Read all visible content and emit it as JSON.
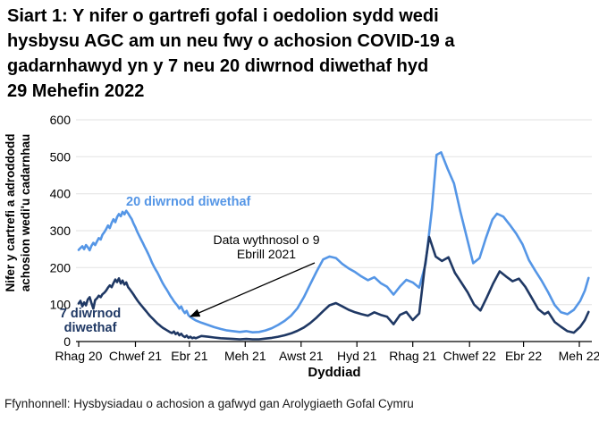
{
  "title_lines": [
    "Siart 1: Y nifer o gartrefi gofal i oedolion sydd wedi",
    "hysbysu AGC am un neu fwy o achosion COVID-19 a",
    "gadarnhawyd yn y 7 neu 20 diwrnod diwethaf hyd",
    "29 Mehefin 2022"
  ],
  "source": "Ffynhonnell: Hysbysiadau o achosion a gafwyd gan Arolygiaeth Gofal Cymru",
  "colors": {
    "blue": "#5596E6",
    "navy": "#1F3864",
    "grid": "#E2E2E2",
    "axis": "#000000",
    "text": "#000000"
  },
  "labels": {
    "series20": "20 diwrnod diwethaf",
    "series7_line1": "7 diwrnod",
    "series7_line2": "diwethaf",
    "annotation_line1": "Data wythnosol o 9",
    "annotation_line2": "Ebrill 2021",
    "xlabel": "Dyddiad",
    "ylabel_line1": "Nifer y cartrefi a adroddodd",
    "ylabel_line2": "achosion wedi'u cadarnhau"
  },
  "chart_data": {
    "type": "line",
    "title": "Siart 1: Y nifer o gartrefi gofal i oedolion sydd wedi hysbysu AGC am un neu fwy o achosion COVID-19 a gadarnhawyd yn y 7 neu 20 diwrnod diwethaf hyd 29 Mehefin 2022",
    "xlabel": "Dyddiad",
    "ylabel": "Nifer y cartrefi a adroddodd achosion wedi'u cadarnhau",
    "ylim": [
      0,
      600
    ],
    "y_ticks": [
      0,
      100,
      200,
      300,
      400,
      500,
      600
    ],
    "x_ticks": [
      {
        "label": "Rhag 20",
        "day": 0
      },
      {
        "label": "Chwef 21",
        "day": 62
      },
      {
        "label": "Ebr 21",
        "day": 121
      },
      {
        "label": "Meh 21",
        "day": 182
      },
      {
        "label": "Awst 21",
        "day": 243
      },
      {
        "label": "Hyd 21",
        "day": 304
      },
      {
        "label": "Rhag 21",
        "day": 365
      },
      {
        "label": "Chwef 22",
        "day": 427
      },
      {
        "label": "Ebr 22",
        "day": 486
      },
      {
        "label": "Meh 22",
        "day": 547
      }
    ],
    "x_unit": "days since 1 Dec 2020, daily data until 9 Ebrill 2021 then weekly",
    "annotation": {
      "text": "Data wythnosol o 9 Ebrill 2021",
      "points_to_day": 119
    },
    "grid": "horizontal only",
    "legend_position": "inline labels next to lines",
    "series": [
      {
        "id": "20-diwrnod",
        "name": "20 diwrnod diwethaf",
        "color": "#5596E6",
        "points": [
          [
            0,
            248
          ],
          [
            2,
            253
          ],
          [
            4,
            258
          ],
          [
            6,
            250
          ],
          [
            8,
            261
          ],
          [
            10,
            255
          ],
          [
            12,
            247
          ],
          [
            14,
            259
          ],
          [
            16,
            267
          ],
          [
            18,
            261
          ],
          [
            20,
            271
          ],
          [
            22,
            280
          ],
          [
            24,
            276
          ],
          [
            26,
            289
          ],
          [
            28,
            296
          ],
          [
            30,
            304
          ],
          [
            32,
            314
          ],
          [
            34,
            307
          ],
          [
            36,
            321
          ],
          [
            38,
            331
          ],
          [
            40,
            323
          ],
          [
            42,
            337
          ],
          [
            44,
            345
          ],
          [
            46,
            339
          ],
          [
            48,
            351
          ],
          [
            50,
            344
          ],
          [
            52,
            354
          ],
          [
            54,
            347
          ],
          [
            56,
            339
          ],
          [
            58,
            331
          ],
          [
            60,
            319
          ],
          [
            62,
            309
          ],
          [
            64,
            297
          ],
          [
            66,
            287
          ],
          [
            68,
            277
          ],
          [
            70,
            267
          ],
          [
            72,
            257
          ],
          [
            74,
            247
          ],
          [
            76,
            237
          ],
          [
            78,
            226
          ],
          [
            80,
            214
          ],
          [
            82,
            204
          ],
          [
            84,
            195
          ],
          [
            86,
            187
          ],
          [
            88,
            177
          ],
          [
            90,
            167
          ],
          [
            92,
            157
          ],
          [
            94,
            149
          ],
          [
            96,
            141
          ],
          [
            98,
            133
          ],
          [
            100,
            124
          ],
          [
            102,
            117
          ],
          [
            104,
            109
          ],
          [
            106,
            103
          ],
          [
            108,
            97
          ],
          [
            110,
            89
          ],
          [
            112,
            95
          ],
          [
            114,
            84
          ],
          [
            116,
            77
          ],
          [
            118,
            83
          ],
          [
            120,
            71
          ],
          [
            122,
            67
          ],
          [
            124,
            63
          ],
          [
            126,
            60
          ],
          [
            128,
            57
          ],
          [
            134,
            51
          ],
          [
            141,
            45
          ],
          [
            148,
            39
          ],
          [
            155,
            34
          ],
          [
            162,
            30
          ],
          [
            169,
            28
          ],
          [
            176,
            26
          ],
          [
            183,
            28
          ],
          [
            190,
            25
          ],
          [
            197,
            26
          ],
          [
            204,
            30
          ],
          [
            211,
            36
          ],
          [
            218,
            45
          ],
          [
            225,
            56
          ],
          [
            232,
            70
          ],
          [
            239,
            90
          ],
          [
            246,
            120
          ],
          [
            253,
            155
          ],
          [
            260,
            190
          ],
          [
            267,
            222
          ],
          [
            274,
            230
          ],
          [
            281,
            226
          ],
          [
            288,
            210
          ],
          [
            295,
            198
          ],
          [
            302,
            188
          ],
          [
            309,
            176
          ],
          [
            316,
            166
          ],
          [
            323,
            174
          ],
          [
            330,
            158
          ],
          [
            337,
            148
          ],
          [
            344,
            127
          ],
          [
            351,
            149
          ],
          [
            358,
            167
          ],
          [
            365,
            160
          ],
          [
            372,
            146
          ],
          [
            379,
            210
          ],
          [
            386,
            360
          ],
          [
            391,
            505
          ],
          [
            396,
            512
          ],
          [
            403,
            468
          ],
          [
            410,
            428
          ],
          [
            417,
            352
          ],
          [
            424,
            282
          ],
          [
            431,
            212
          ],
          [
            438,
            226
          ],
          [
            445,
            281
          ],
          [
            452,
            330
          ],
          [
            457,
            346
          ],
          [
            464,
            338
          ],
          [
            471,
            316
          ],
          [
            478,
            292
          ],
          [
            485,
            263
          ],
          [
            492,
            220
          ],
          [
            499,
            191
          ],
          [
            506,
            164
          ],
          [
            513,
            133
          ],
          [
            520,
            99
          ],
          [
            527,
            79
          ],
          [
            534,
            74
          ],
          [
            541,
            86
          ],
          [
            548,
            110
          ],
          [
            553,
            138
          ],
          [
            557,
            172
          ]
        ]
      },
      {
        "id": "7-diwrnod",
        "name": "7 diwrnod diwethaf",
        "color": "#1F3864",
        "points": [
          [
            0,
            103
          ],
          [
            2,
            110
          ],
          [
            4,
            95
          ],
          [
            6,
            106
          ],
          [
            8,
            98
          ],
          [
            10,
            114
          ],
          [
            12,
            120
          ],
          [
            14,
            104
          ],
          [
            16,
            89
          ],
          [
            18,
            112
          ],
          [
            20,
            117
          ],
          [
            22,
            124
          ],
          [
            24,
            120
          ],
          [
            26,
            128
          ],
          [
            28,
            132
          ],
          [
            30,
            138
          ],
          [
            32,
            146
          ],
          [
            34,
            152
          ],
          [
            36,
            147
          ],
          [
            38,
            158
          ],
          [
            40,
            168
          ],
          [
            42,
            161
          ],
          [
            44,
            171
          ],
          [
            46,
            157
          ],
          [
            48,
            165
          ],
          [
            50,
            154
          ],
          [
            52,
            160
          ],
          [
            54,
            147
          ],
          [
            56,
            141
          ],
          [
            58,
            134
          ],
          [
            60,
            127
          ],
          [
            62,
            119
          ],
          [
            64,
            112
          ],
          [
            66,
            105
          ],
          [
            68,
            99
          ],
          [
            70,
            93
          ],
          [
            72,
            87
          ],
          [
            74,
            81
          ],
          [
            76,
            75
          ],
          [
            78,
            69
          ],
          [
            80,
            64
          ],
          [
            82,
            59
          ],
          [
            84,
            54
          ],
          [
            86,
            49
          ],
          [
            88,
            45
          ],
          [
            90,
            41
          ],
          [
            92,
            37
          ],
          [
            94,
            34
          ],
          [
            96,
            31
          ],
          [
            98,
            28
          ],
          [
            100,
            25
          ],
          [
            102,
            23
          ],
          [
            104,
            27
          ],
          [
            106,
            20
          ],
          [
            108,
            24
          ],
          [
            110,
            17
          ],
          [
            112,
            21
          ],
          [
            114,
            15
          ],
          [
            116,
            12
          ],
          [
            118,
            16
          ],
          [
            120,
            10
          ],
          [
            122,
            13
          ],
          [
            124,
            9
          ],
          [
            126,
            11
          ],
          [
            128,
            9
          ],
          [
            134,
            15
          ],
          [
            141,
            13
          ],
          [
            148,
            11
          ],
          [
            155,
            9
          ],
          [
            162,
            8
          ],
          [
            169,
            7
          ],
          [
            176,
            6
          ],
          [
            183,
            7
          ],
          [
            190,
            6
          ],
          [
            197,
            6
          ],
          [
            204,
            8
          ],
          [
            211,
            10
          ],
          [
            218,
            13
          ],
          [
            225,
            17
          ],
          [
            232,
            22
          ],
          [
            239,
            29
          ],
          [
            246,
            38
          ],
          [
            253,
            50
          ],
          [
            260,
            65
          ],
          [
            267,
            82
          ],
          [
            274,
            98
          ],
          [
            281,
            104
          ],
          [
            288,
            95
          ],
          [
            295,
            86
          ],
          [
            302,
            79
          ],
          [
            309,
            74
          ],
          [
            316,
            70
          ],
          [
            323,
            79
          ],
          [
            330,
            72
          ],
          [
            337,
            67
          ],
          [
            344,
            47
          ],
          [
            351,
            72
          ],
          [
            358,
            80
          ],
          [
            365,
            58
          ],
          [
            372,
            76
          ],
          [
            378,
            200
          ],
          [
            383,
            283
          ],
          [
            390,
            230
          ],
          [
            397,
            218
          ],
          [
            404,
            228
          ],
          [
            411,
            186
          ],
          [
            418,
            160
          ],
          [
            425,
            133
          ],
          [
            432,
            100
          ],
          [
            439,
            84
          ],
          [
            446,
            120
          ],
          [
            453,
            158
          ],
          [
            460,
            190
          ],
          [
            467,
            176
          ],
          [
            474,
            163
          ],
          [
            481,
            170
          ],
          [
            488,
            148
          ],
          [
            495,
            118
          ],
          [
            502,
            88
          ],
          [
            509,
            74
          ],
          [
            513,
            80
          ],
          [
            520,
            53
          ],
          [
            527,
            40
          ],
          [
            534,
            28
          ],
          [
            541,
            24
          ],
          [
            548,
            40
          ],
          [
            553,
            58
          ],
          [
            557,
            80
          ]
        ]
      }
    ]
  }
}
